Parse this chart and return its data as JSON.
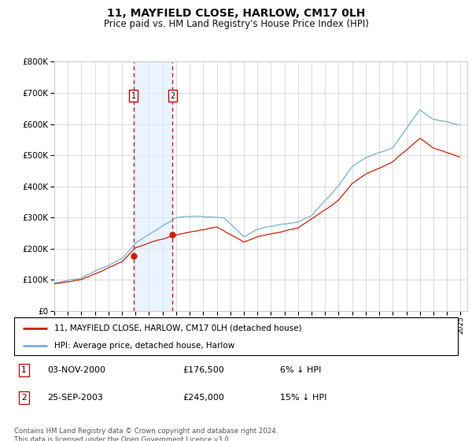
{
  "title": "11, MAYFIELD CLOSE, HARLOW, CM17 0LH",
  "subtitle": "Price paid vs. HM Land Registry's House Price Index (HPI)",
  "xlim": [
    1995.0,
    2025.5
  ],
  "ylim": [
    0,
    800000
  ],
  "yticks": [
    0,
    100000,
    200000,
    300000,
    400000,
    500000,
    600000,
    700000,
    800000
  ],
  "red_line_color": "#cc2200",
  "blue_line_color": "#7ab0d4",
  "transaction1": {
    "date": "03-NOV-2000",
    "price": 176500,
    "label": "1",
    "year": 2000.84
  },
  "transaction2": {
    "date": "25-SEP-2003",
    "price": 245000,
    "label": "2",
    "year": 2003.73
  },
  "legend_label_red": "11, MAYFIELD CLOSE, HARLOW, CM17 0LH (detached house)",
  "legend_label_blue": "HPI: Average price, detached house, Harlow",
  "table_rows": [
    {
      "num": "1",
      "date": "03-NOV-2000",
      "price": "£176,500",
      "relation": "6% ↓ HPI"
    },
    {
      "num": "2",
      "date": "25-SEP-2003",
      "price": "£245,000",
      "relation": "15% ↓ HPI"
    }
  ],
  "footer": "Contains HM Land Registry data © Crown copyright and database right 2024.\nThis data is licensed under the Open Government Licence v3.0.",
  "background_color": "#ffffff",
  "grid_color": "#cccccc",
  "shade_color": "#ddeeff",
  "num_points": 3600,
  "hpi_seed": 10,
  "red_seed": 20
}
